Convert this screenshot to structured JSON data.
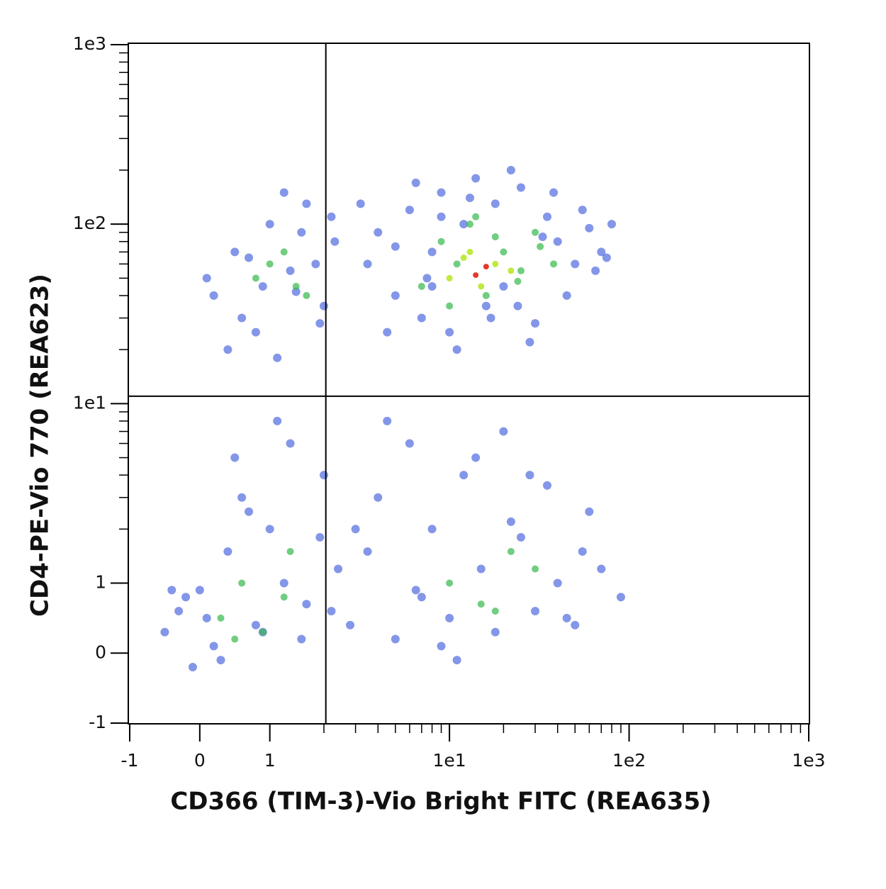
{
  "chart_data": {
    "type": "scatter",
    "xlabel": "CD366 (TIM-3)-Vio Bright FITC (REA635)",
    "ylabel": "CD4-PE-Vio 770 (REA623)",
    "xscale": "symlog",
    "yscale": "symlog",
    "linthresh": 1,
    "xlim": [
      -1,
      1000
    ],
    "ylim": [
      -1,
      1000
    ],
    "xticks": [
      -1,
      0,
      1,
      {
        "value": 10,
        "label": "1e1"
      },
      {
        "value": 100,
        "label": "1e2"
      },
      {
        "value": 1000,
        "label": "1e3"
      }
    ],
    "yticks": [
      -1,
      0,
      1,
      {
        "value": 10,
        "label": "1e1"
      },
      {
        "value": 100,
        "label": "1e2"
      },
      {
        "value": 1000,
        "label": "1e3"
      }
    ],
    "xminorticks": [
      2,
      3,
      4,
      5,
      6,
      7,
      8,
      9,
      20,
      30,
      40,
      50,
      60,
      70,
      80,
      90,
      200,
      300,
      400,
      500,
      600,
      700,
      800,
      900
    ],
    "yminorticks": [
      2,
      3,
      4,
      5,
      6,
      7,
      8,
      9,
      20,
      30,
      40,
      50,
      60,
      70,
      80,
      90,
      200,
      300,
      400,
      500,
      600,
      700,
      800,
      900
    ],
    "quadrants": {
      "x": 2.05,
      "y": 11
    },
    "series": [
      {
        "color": "#1f3fd6",
        "x": [
          3.5,
          4,
          5,
          6,
          7,
          8,
          9,
          10,
          12,
          14,
          16,
          18,
          20,
          25,
          30,
          35,
          40,
          50,
          60,
          70,
          80,
          4.5,
          6.5,
          11,
          22,
          45,
          65,
          5,
          8,
          13,
          28,
          55,
          9,
          17,
          33,
          3.2,
          7.5,
          24,
          38,
          75,
          0.2,
          0.5,
          0.8,
          1,
          1.3,
          1.6,
          2,
          2.3,
          0.4,
          0.9,
          1.2,
          1.8,
          2.2,
          0.6,
          1.5,
          0.1,
          1.1,
          1.9,
          0.7,
          1.4,
          -0.5,
          -0.3,
          -0.1,
          0,
          0.2,
          0.4,
          0.6,
          0.8,
          1,
          1.3,
          1.6,
          2,
          2.4,
          -0.2,
          0.3,
          0.7,
          1.1,
          1.5,
          1.9,
          0.1,
          0.5,
          0.9,
          1.2,
          2.2,
          -0.4,
          2.8,
          3.5,
          4,
          5,
          6,
          7,
          8,
          10,
          12,
          15,
          18,
          20,
          25,
          30,
          35,
          40,
          50,
          60,
          70,
          90,
          4.5,
          9,
          14,
          22,
          45,
          3,
          6.5,
          11,
          28,
          55
        ],
        "values": [
          60,
          90,
          40,
          120,
          30,
          70,
          150,
          25,
          100,
          180,
          35,
          130,
          45,
          160,
          28,
          110,
          80,
          60,
          95,
          70,
          100,
          25,
          170,
          20,
          200,
          40,
          55,
          75,
          45,
          140,
          22,
          120,
          110,
          30,
          85,
          130,
          50,
          35,
          150,
          65,
          40,
          70,
          25,
          100,
          55,
          130,
          35,
          80,
          20,
          45,
          150,
          60,
          110,
          30,
          90,
          50,
          18,
          28,
          65,
          42,
          0.3,
          0.6,
          -0.2,
          0.9,
          0.1,
          1.5,
          3,
          0.4,
          2,
          6,
          0.7,
          4,
          1.2,
          0.8,
          -0.1,
          2.5,
          8,
          0.2,
          1.8,
          0.5,
          5,
          0.3,
          1,
          0.6,
          0.9,
          0.4,
          1.5,
          3,
          0.2,
          6,
          0.8,
          2,
          0.5,
          4,
          1.2,
          0.3,
          7,
          1.8,
          0.6,
          3.5,
          1,
          0.4,
          2.5,
          1.2,
          0.8,
          8,
          0.1,
          5,
          2.2,
          0.5,
          2,
          0.9,
          -0.1,
          4,
          1.5
        ]
      },
      {
        "color": "#35b84a",
        "x": [
          7,
          9,
          11,
          13,
          16,
          20,
          25,
          30,
          38,
          10,
          14,
          18,
          24,
          32,
          0.8,
          1.2,
          1.6,
          1,
          1.4,
          0.3,
          0.6,
          0.9,
          1.2,
          0.5,
          1.3,
          10,
          15,
          22,
          30,
          18
        ],
        "values": [
          45,
          80,
          60,
          100,
          40,
          70,
          55,
          90,
          60,
          35,
          110,
          85,
          48,
          75,
          50,
          70,
          40,
          60,
          45,
          0.5,
          1,
          0.3,
          0.8,
          0.2,
          1.5,
          1,
          0.7,
          1.5,
          1.2,
          0.6
        ]
      },
      {
        "color": "#b5e61d",
        "x": [
          10,
          12,
          15,
          18,
          22,
          13
        ],
        "values": [
          50,
          65,
          45,
          60,
          55,
          70
        ]
      },
      {
        "color": "#e0301e",
        "x": [
          14,
          16
        ],
        "values": [
          52,
          58
        ]
      }
    ]
  }
}
